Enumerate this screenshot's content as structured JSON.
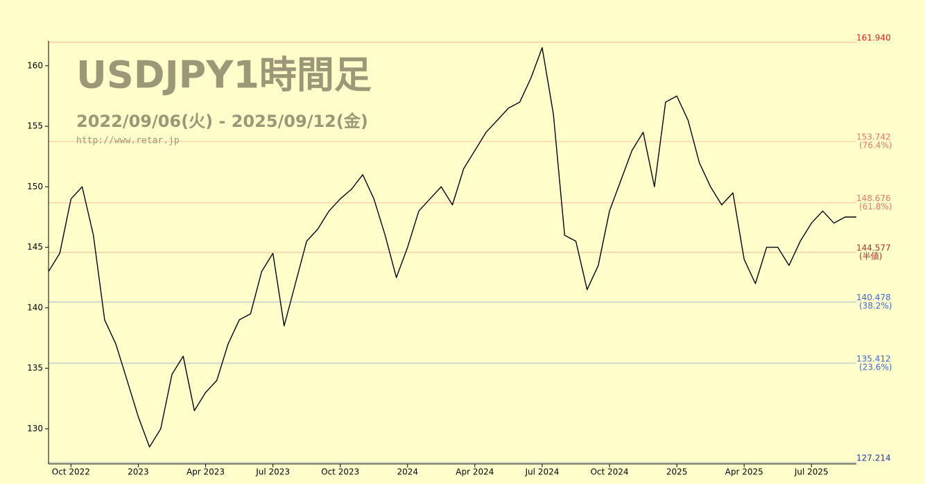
{
  "chart_data": {
    "type": "line",
    "title": "USDJPY1時間足",
    "subtitle": "2022/09/06(火) - 2025/09/12(金)",
    "source": "http://www.retar.jp",
    "color": "#000000",
    "categories": [
      null,
      null,
      "Oct 2022",
      null,
      null,
      null,
      null,
      null,
      "2023",
      null,
      null,
      null,
      null,
      null,
      "Apr 2023",
      null,
      null,
      null,
      null,
      null,
      "Jul 2023",
      null,
      null,
      null,
      null,
      null,
      "Oct 2023",
      null,
      null,
      null,
      null,
      null,
      "2024",
      null,
      null,
      null,
      null,
      null,
      "Apr 2024",
      null,
      null,
      null,
      null,
      null,
      "Jul 2024",
      null,
      null,
      null,
      null,
      null,
      "Oct 2024",
      null,
      null,
      null,
      null,
      null,
      "2025",
      null,
      null,
      null,
      null,
      null,
      "Apr 2025",
      null,
      null,
      null,
      null,
      null,
      "Jul 2025",
      null,
      null,
      null,
      null
    ],
    "values": [
      143,
      144.5,
      149,
      150,
      146,
      139,
      137,
      134,
      131,
      128.5,
      130,
      134.5,
      136,
      131.5,
      133,
      134,
      137,
      139,
      139.5,
      143,
      144.5,
      138.5,
      142,
      145.5,
      146.5,
      148,
      149,
      149.8,
      151,
      149,
      146,
      142.5,
      145,
      148,
      149,
      150,
      148.5,
      151.5,
      153,
      154.5,
      155.5,
      156.5,
      157,
      159,
      161.5,
      156,
      146,
      145.5,
      141.5,
      143.5,
      148,
      150.5,
      153,
      154.5,
      150,
      157,
      157.5,
      155.5,
      152,
      150,
      148.5,
      149.5,
      144,
      142,
      145,
      145,
      143.5,
      145.5,
      147,
      148,
      147,
      147.5,
      147.5
    ],
    "ylim": [
      127.214,
      161.94
    ],
    "yticks": [
      130,
      135,
      140,
      145,
      150,
      155,
      160
    ],
    "levels": [
      {
        "value": 161.94,
        "label": "161.940",
        "color": "#dd2222"
      },
      {
        "value": 153.742,
        "label": "153.742",
        "note": "(76.4%)",
        "color": "#ee7766"
      },
      {
        "value": 148.676,
        "label": "148.676",
        "note": "(61.8%)",
        "color": "#ee7766"
      },
      {
        "value": 144.577,
        "label": "144.577",
        "note": "(半値)",
        "color": "#aa3322"
      },
      {
        "value": 140.478,
        "label": "140.478",
        "note": "(38.2%)",
        "color": "#4466dd"
      },
      {
        "value": 135.412,
        "label": "135.412",
        "note": "(23.6%)",
        "color": "#4466dd"
      },
      {
        "value": 127.214,
        "label": "127.214",
        "color": "#2233bb"
      }
    ]
  }
}
